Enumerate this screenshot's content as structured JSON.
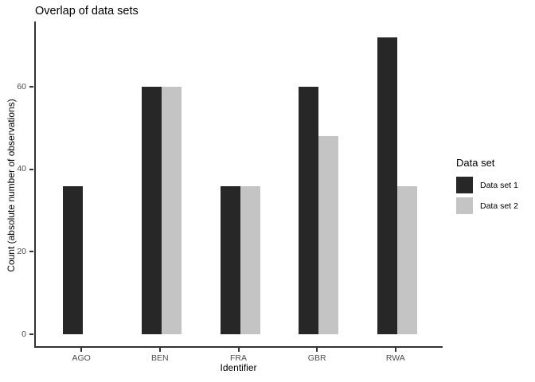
{
  "chart_data": {
    "type": "bar",
    "title": "Overlap of data sets",
    "xlabel": "Identifier",
    "ylabel": "Count (absolute number of observations)",
    "categories": [
      "AGO",
      "BEN",
      "FRA",
      "GBR",
      "RWA"
    ],
    "series": [
      {
        "name": "Data set 1",
        "color": "#272727",
        "values": [
          36,
          60,
          36,
          60,
          72
        ]
      },
      {
        "name": "Data set 2",
        "color": "#c4c4c4",
        "values": [
          null,
          60,
          36,
          48,
          36
        ]
      }
    ],
    "yticks": [
      0,
      20,
      40,
      60
    ],
    "ylim": [
      -3.3,
      75.9
    ],
    "grid": false,
    "legend": {
      "title": "Data set",
      "position": "right",
      "entries": [
        "Data set 1",
        "Data set 2"
      ]
    },
    "axis_color": "#333333",
    "tick_label_color": "#4d4d4d",
    "background_color": "#ffffff"
  }
}
